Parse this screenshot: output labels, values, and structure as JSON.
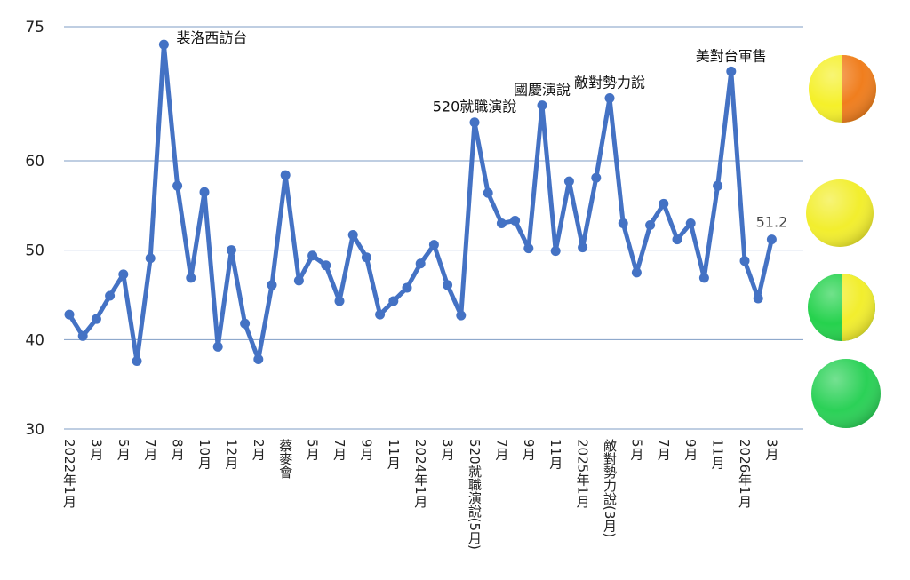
{
  "chart_data": {
    "type": "line",
    "title": "",
    "xlabel": "",
    "ylabel": "",
    "ylim": [
      30,
      75
    ],
    "yticks": [
      30,
      40,
      50,
      60,
      75
    ],
    "grid": true,
    "series": [
      {
        "color": "#4472C4",
        "values": [
          42.8,
          40.4,
          42.3,
          44.9,
          47.3,
          37.6,
          49.1,
          73.0,
          57.2,
          46.9,
          56.5,
          39.2,
          50.0,
          41.8,
          37.8,
          46.1,
          58.4,
          46.6,
          49.4,
          48.3,
          44.3,
          51.7,
          49.2,
          42.8,
          44.3,
          45.8,
          48.5,
          50.6,
          46.1,
          42.7,
          64.3,
          56.4,
          53.0,
          53.3,
          50.2,
          66.2,
          49.9,
          57.7,
          50.3,
          58.1,
          67.0,
          53.0,
          47.5,
          52.8,
          55.2,
          51.2,
          53.0,
          46.9,
          57.2,
          70.0,
          48.8,
          44.6,
          51.2
        ]
      }
    ],
    "x_tick_labels": [
      {
        "index": 0,
        "text": "2022年1月"
      },
      {
        "index": 2,
        "text": "3月"
      },
      {
        "index": 4,
        "text": "5月"
      },
      {
        "index": 6,
        "text": "7月"
      },
      {
        "index": 8,
        "text": "8月"
      },
      {
        "index": 10,
        "text": "10月"
      },
      {
        "index": 12,
        "text": "12月"
      },
      {
        "index": 14,
        "text": "2月"
      },
      {
        "index": 16,
        "text": "蔡麥會"
      },
      {
        "index": 18,
        "text": "5月"
      },
      {
        "index": 20,
        "text": "7月"
      },
      {
        "index": 22,
        "text": "9月"
      },
      {
        "index": 24,
        "text": "11月"
      },
      {
        "index": 26,
        "text": "2024年1月"
      },
      {
        "index": 28,
        "text": "3月"
      },
      {
        "index": 30,
        "text": "520就職演說(5月)"
      },
      {
        "index": 32,
        "text": "7月"
      },
      {
        "index": 34,
        "text": "9月"
      },
      {
        "index": 36,
        "text": "11月"
      },
      {
        "index": 38,
        "text": "2025年1月"
      },
      {
        "index": 40,
        "text": "敵對勢力說(3月)"
      },
      {
        "index": 42,
        "text": "5月"
      },
      {
        "index": 44,
        "text": "7月"
      },
      {
        "index": 46,
        "text": "9月"
      },
      {
        "index": 48,
        "text": "11月"
      },
      {
        "index": 50,
        "text": "2026年1月"
      },
      {
        "index": 52,
        "text": "3月"
      }
    ],
    "annotations": [
      {
        "index": 7,
        "text": "裴洛西訪台",
        "anchor": "start"
      },
      {
        "index": 30,
        "text": "520就職演說",
        "anchor": "middle"
      },
      {
        "index": 35,
        "text": "國慶演說",
        "anchor": "middle"
      },
      {
        "index": 40,
        "text": "敵對勢力說",
        "anchor": "middle"
      },
      {
        "index": 49,
        "text": "美對台軍售",
        "anchor": "middle"
      }
    ],
    "last_value_label": "51.2"
  },
  "indicators": [
    {
      "name": "yellow-orange",
      "left": "#F5F02A",
      "right": "#F07E1E"
    },
    {
      "name": "yellow",
      "left": "#F2EE2E",
      "right": "#F2EE2E"
    },
    {
      "name": "green-yellow",
      "left": "#25D24D",
      "right": "#F2EE2E"
    },
    {
      "name": "green",
      "left": "#2BD157",
      "right": "#2BD157"
    }
  ]
}
